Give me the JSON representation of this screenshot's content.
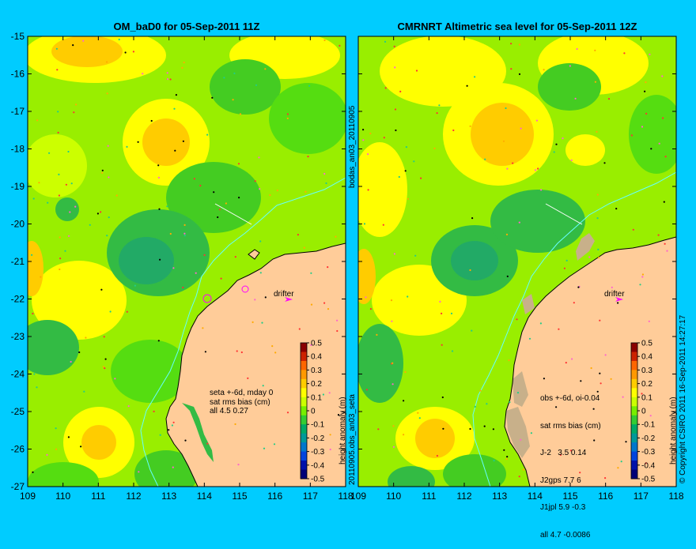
{
  "left_panel": {
    "title": "OM_baD0 for 05-Sep-2011 11Z",
    "annotation_lines": [
      "seta +-6d, mday 0",
      "sat rms bias (cm)",
      "all 4.5 0.27"
    ],
    "side_label_top": "bodas_an03_20110905",
    "side_label_bottom": "20110905.obs_an03_seta"
  },
  "right_panel": {
    "title": "CMRNRT Altimetric sea level  for 05-Sep-2011 12Z",
    "annotation_lines": [
      "obs +-6d, oi-0.04",
      "sat rms bias (cm)",
      "J-2   3.5 0.14",
      "J2gps 7.7 6",
      "J1jpl 5.9 -0.3",
      "all 4.7 -0.0086"
    ],
    "copyright": "© Copyright CSIRO 2011   16-Sep-2011 14:27:17"
  },
  "drifter_label": "drifter",
  "colorbar": {
    "label": "height anomaly (m)",
    "ticks": [
      "0.5",
      "0.4",
      "0.3",
      "0.2",
      "0.1",
      "0",
      "-0.1",
      "-0.2",
      "-0.3",
      "-0.4",
      "-0.5"
    ],
    "colors": [
      "#8b0000",
      "#cc2200",
      "#ff6600",
      "#ff9900",
      "#ffcc00",
      "#ffff00",
      "#ccff00",
      "#77ee00",
      "#33cc33",
      "#00aa66",
      "#009999",
      "#0077cc",
      "#0044dd",
      "#0011aa",
      "#000077"
    ]
  },
  "axes": {
    "x_ticks": [
      "109",
      "110",
      "111",
      "112",
      "113",
      "114",
      "115",
      "116",
      "117",
      "118"
    ],
    "y_ticks": [
      "-15",
      "-16",
      "-17",
      "-18",
      "-19",
      "-20",
      "-21",
      "-22",
      "-23",
      "-24",
      "-25",
      "-26",
      "-27"
    ],
    "lon_range": [
      109,
      118
    ],
    "lat_range": [
      -27,
      -15
    ]
  },
  "colors": {
    "background": "#00ccff",
    "land": "#ffcc99",
    "shelf": "#c8b08a",
    "sea_base": "#88ee00"
  }
}
